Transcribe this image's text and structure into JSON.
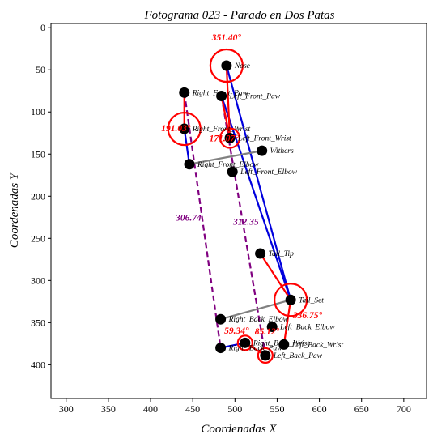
{
  "chart_data": {
    "type": "scatter",
    "title": "Fotograma 023 - Parado en Dos Patas",
    "xlabel": "Coordenadas X",
    "ylabel": "Coordenadas Y",
    "xlim": [
      282,
      727
    ],
    "ylim": [
      440,
      -5
    ],
    "y_inverted": true,
    "xticks": [
      300,
      350,
      400,
      450,
      500,
      550,
      600,
      650,
      700
    ],
    "yticks": [
      0,
      50,
      100,
      150,
      200,
      250,
      300,
      350,
      400
    ],
    "grid": false,
    "colors": {
      "keypoint": "#000000",
      "red_line": "#ff0000",
      "blue_line": "#0000dd",
      "gray_line": "#808080",
      "dashed": "#800080",
      "circle": "#ff0000"
    },
    "keypoints": [
      {
        "id": "nose",
        "label": "Nose",
        "x": 490,
        "y": 45
      },
      {
        "id": "right_front_paw",
        "label": "Right_Front_Paw",
        "x": 440,
        "y": 77
      },
      {
        "id": "left_front_paw",
        "label": "Left_Front_Paw",
        "x": 484,
        "y": 81
      },
      {
        "id": "right_front_wrist",
        "label": "Right_Front_Wrist",
        "x": 440,
        "y": 120
      },
      {
        "id": "left_front_wrist",
        "label": "Left_Front_Wrist",
        "x": 494,
        "y": 131
      },
      {
        "id": "withers",
        "label": "Withers",
        "x": 532,
        "y": 146
      },
      {
        "id": "right_front_elbow",
        "label": "Right_Front_Elbow",
        "x": 446,
        "y": 162
      },
      {
        "id": "left_front_elbow",
        "label": "Left_Front_Elbow",
        "x": 497,
        "y": 171
      },
      {
        "id": "tail_tip",
        "label": "Tail_Tip",
        "x": 530,
        "y": 268
      },
      {
        "id": "tail_set",
        "label": "Tail_Set",
        "x": 566,
        "y": 323
      },
      {
        "id": "right_back_elbow",
        "label": "Right_Back_Elbow",
        "x": 483,
        "y": 346
      },
      {
        "id": "left_back_elbow",
        "label": "Left_Back_Elbow",
        "x": 544,
        "y": 355
      },
      {
        "id": "right_back_wrist",
        "label": "Right_Back_Wrist",
        "x": 512,
        "y": 374
      },
      {
        "id": "left_back_wrist",
        "label": "Left_Back_Wrist",
        "x": 558,
        "y": 376
      },
      {
        "id": "right_back_paw",
        "label": "Right_Back_Paw",
        "x": 483,
        "y": 380
      },
      {
        "id": "left_back_paw",
        "label": "Left_Back_Paw",
        "x": 536,
        "y": 389
      }
    ],
    "segments": [
      {
        "from": "nose",
        "to": "tail_set",
        "color": "blue"
      },
      {
        "from": "left_front_paw",
        "to": "tail_set",
        "color": "blue"
      },
      {
        "from": "nose",
        "to": "left_front_wrist",
        "color": "red"
      },
      {
        "from": "left_front_paw",
        "to": "left_front_wrist",
        "color": "red"
      },
      {
        "from": "right_front_paw",
        "to": "right_front_wrist",
        "color": "red"
      },
      {
        "from": "right_front_wrist",
        "to": "right_front_elbow",
        "color": "blue"
      },
      {
        "from": "right_front_elbow",
        "to": "withers",
        "color": "gray"
      },
      {
        "from": "tail_tip",
        "to": "tail_set",
        "color": "red"
      },
      {
        "from": "tail_set",
        "to": "right_back_elbow",
        "color": "gray"
      },
      {
        "from": "tail_set",
        "to": "left_back_wrist",
        "color": "red"
      },
      {
        "from": "right_back_paw",
        "to": "right_back_wrist",
        "color": "blue"
      },
      {
        "from": "right_back_wrist",
        "to": "left_back_paw",
        "color": "red"
      }
    ],
    "dashed_segments": [
      {
        "from": "right_front_paw",
        "to": "right_back_paw",
        "label": "306.74",
        "lx": 445,
        "ly": 229
      },
      {
        "from": "left_front_paw",
        "to": "left_back_paw",
        "label": "312.35",
        "lx": 513,
        "ly": 234
      }
    ],
    "angle_circles": [
      {
        "at": "nose",
        "x": 490,
        "y": 45,
        "r": 20
      },
      {
        "at": "right_front_wrist",
        "x": 440,
        "y": 120,
        "r": 20
      },
      {
        "at": "left_front_wrist",
        "x": 494,
        "y": 131,
        "r": 12
      },
      {
        "at": "tail_set",
        "x": 566,
        "y": 323,
        "r": 20
      },
      {
        "at": "right_back_wrist",
        "x": 512,
        "y": 374,
        "r": 9
      },
      {
        "at": "left_back_paw",
        "x": 536,
        "y": 389,
        "r": 9
      }
    ],
    "angle_labels": [
      {
        "text": "351.40°",
        "x": 490,
        "y": 15
      },
      {
        "text": "191.03°",
        "x": 430,
        "y": 123
      },
      {
        "text": "171.07°",
        "x": 487,
        "y": 135
      },
      {
        "text": "336.75°",
        "x": 586,
        "y": 345
      },
      {
        "text": "59.34°",
        "x": 502,
        "y": 363
      },
      {
        "text": "85.12°",
        "x": 538,
        "y": 364
      }
    ]
  }
}
